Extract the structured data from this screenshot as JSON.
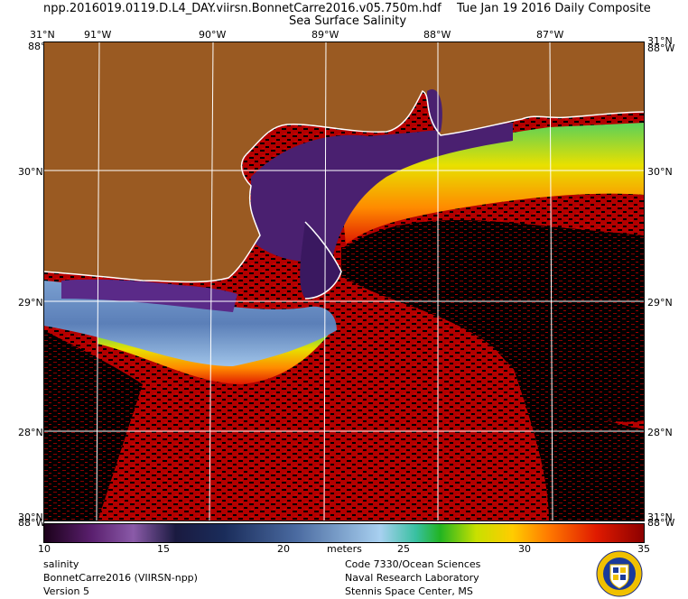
{
  "header": {
    "filename": "npp.2016019.0119.D.L4_DAY.viirsn.BonnetCarre2016.v05.750m.hdf",
    "date": "Tue Jan 19 2016 Daily Composite",
    "product": "Sea Surface Salinity"
  },
  "axes": {
    "top_longitudes": [
      "31°N",
      "91°W",
      "90°W",
      "89°W",
      "88°W",
      "87°W",
      "31°N"
    ],
    "top_corner_overlay": [
      "88°W",
      "88°W"
    ],
    "right_latitudes": [
      "30°N",
      "29°N",
      "28°N"
    ],
    "left_latitudes": [
      "30°N",
      "29°N",
      "28°N"
    ],
    "bottom_corner_labels": [
      "88°W",
      "88°W"
    ],
    "bottom_corner_overlay": [
      "30°N",
      "31°N"
    ]
  },
  "colorbar": {
    "ticks": [
      "10",
      "15",
      "20",
      "25",
      "30",
      "35"
    ],
    "unit": "meters",
    "min": 10,
    "max": 35
  },
  "footer": {
    "left": [
      "salinity",
      "BonnetCarre2016 (VIIRSN-npp)",
      "Version 5"
    ],
    "right": [
      "Code 7330/Ocean Sciences",
      "Naval Research Laboratory",
      "Stennis Space Center, MS"
    ]
  },
  "colors": {
    "land": "#9a5a22",
    "no_data": "#000000",
    "coast": "#ffffff",
    "grid": "#ffffff"
  }
}
